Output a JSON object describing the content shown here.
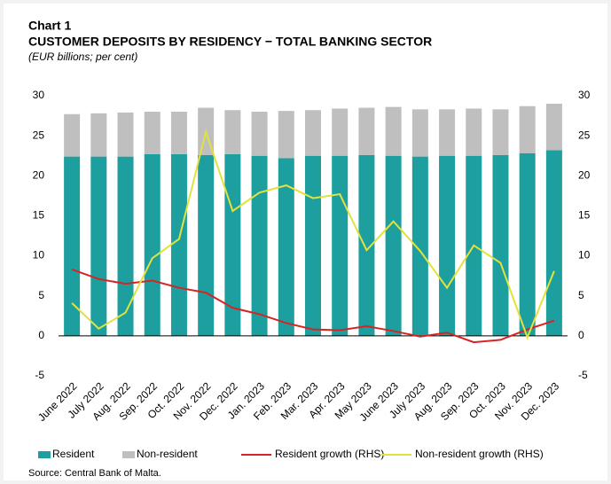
{
  "chart_data": {
    "type": "bar",
    "label": "Chart 1",
    "title": "CUSTOMER DEPOSITS BY RESIDENCY − TOTAL BANKING SECTOR",
    "subtitle": "(EUR billions; per cent)",
    "source": "Source: Central Bank of Malta.",
    "stacked": true,
    "categories": [
      "June 2022",
      "July 2022",
      "Aug. 2022",
      "Sep. 2022",
      "Oct. 2022",
      "Nov. 2022",
      "Dec. 2022",
      "Jan. 2023",
      "Feb. 2023",
      "Mar. 2023",
      "Apr. 2023",
      "May 2023",
      "June 2023",
      "July 2023",
      "Aug. 2023",
      "Sep. 2023",
      "Oct. 2023",
      "Nov. 2023",
      "Dec. 2023"
    ],
    "series": [
      {
        "name": "Resident",
        "color": "#1d9f9f",
        "kind": "bar",
        "values": [
          22.4,
          22.4,
          22.4,
          22.7,
          22.7,
          22.6,
          22.7,
          22.5,
          22.2,
          22.5,
          22.5,
          22.6,
          22.5,
          22.4,
          22.5,
          22.5,
          22.6,
          22.8,
          23.2
        ]
      },
      {
        "name": "Non-resident",
        "color": "#bfbfbf",
        "kind": "bar",
        "values": [
          5.3,
          5.4,
          5.5,
          5.3,
          5.3,
          5.9,
          5.5,
          5.5,
          5.9,
          5.7,
          5.9,
          5.9,
          6.1,
          5.9,
          5.8,
          5.9,
          5.7,
          5.9,
          5.8
        ]
      },
      {
        "name": "Resident growth (RHS)",
        "color": "#d62424",
        "kind": "line",
        "axis": "y2",
        "values": [
          8.3,
          7.1,
          6.5,
          6.9,
          6.0,
          5.4,
          3.5,
          2.7,
          1.6,
          0.8,
          0.7,
          1.2,
          0.6,
          -0.1,
          0.4,
          -0.8,
          -0.5,
          0.8,
          1.9
        ]
      },
      {
        "name": "Non-resident growth (RHS)",
        "color": "#e2e23c",
        "kind": "line",
        "axis": "y2",
        "values": [
          4.1,
          0.9,
          2.9,
          9.7,
          12.1,
          25.5,
          15.6,
          17.9,
          18.8,
          17.2,
          17.7,
          10.7,
          14.3,
          10.6,
          6.0,
          11.3,
          9.1,
          -0.2,
          8.1
        ]
      }
    ],
    "ylim": [
      -5,
      30
    ],
    "yticks": [
      -5,
      0,
      5,
      10,
      15,
      20,
      25,
      30
    ],
    "y2lim": [
      -5,
      30
    ],
    "y2ticks": [
      -5,
      0,
      5,
      10,
      15,
      20,
      25,
      30
    ],
    "legend": "bottom"
  }
}
